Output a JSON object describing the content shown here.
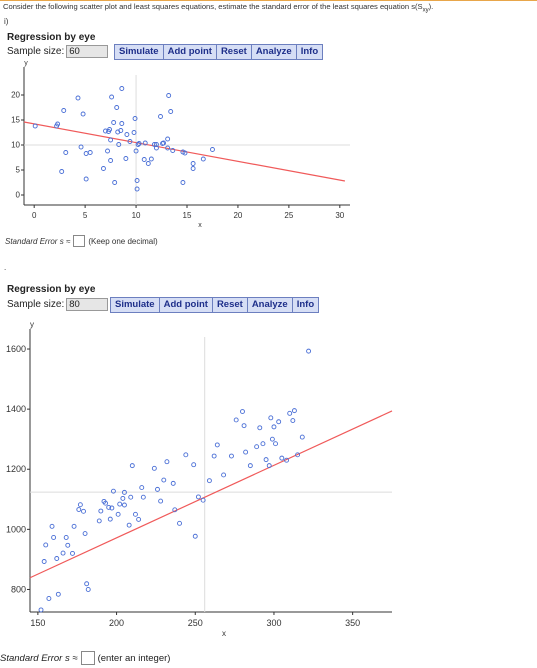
{
  "question": {
    "prompt": "Consider the following scatter plot and least squares equations, estimate the standard error of the least squares equation s(S",
    "prompt_sub": "xy",
    "prompt_end": ").",
    "part_label": "i)",
    "part2_label": "."
  },
  "toolbar": {
    "simulate_label": "Simulate",
    "add_point_label": "Add point",
    "reset_label": "Reset",
    "analyze_label": "Analyze",
    "info_label": "Info"
  },
  "colors": {
    "point": "#4a6fd6",
    "regression_line": "#f05a5a",
    "button_bg": "#d6def5",
    "button_text": "#1e2f8a"
  },
  "panel1": {
    "title": "Regression by eye",
    "sample_size_label": "Sample size:",
    "sample_size_value": "60",
    "answer_label": "Standard Error s ≈",
    "answer_hint": "(Keep one decimal)"
  },
  "panel2": {
    "title": "Regression by eye",
    "sample_size_label": "Sample size:",
    "sample_size_value": "80",
    "answer_label": "Standard Error s ≈",
    "answer_hint": "(enter an integer)"
  },
  "chart_data": [
    {
      "type": "scatter",
      "title": "",
      "xlabel": "x",
      "ylabel": "y",
      "xlim": [
        -1,
        31
      ],
      "ylim": [
        -2,
        24
      ],
      "xticks": [
        0,
        5,
        10,
        15,
        20,
        25,
        30
      ],
      "yticks": [
        0,
        5,
        10,
        15,
        20
      ],
      "mean_crosshair": [
        10,
        10
      ],
      "regression_line": {
        "x": [
          -1,
          30.5
        ],
        "y": [
          14.6,
          2.8
        ]
      },
      "points": [
        [
          0.1,
          13.8
        ],
        [
          2.2,
          13.8
        ],
        [
          2.3,
          14.2
        ],
        [
          2.7,
          4.7
        ],
        [
          2.9,
          16.9
        ],
        [
          3.1,
          8.5
        ],
        [
          4.3,
          19.4
        ],
        [
          4.6,
          9.6
        ],
        [
          4.8,
          16.2
        ],
        [
          5.1,
          3.2
        ],
        [
          5.1,
          8.3
        ],
        [
          5.5,
          8.5
        ],
        [
          6.8,
          5.3
        ],
        [
          7,
          12.8
        ],
        [
          7.2,
          8.8
        ],
        [
          7.3,
          12.7
        ],
        [
          7.4,
          13.1
        ],
        [
          7.5,
          6.9
        ],
        [
          7.5,
          11
        ],
        [
          7.6,
          19.6
        ],
        [
          7.8,
          14.5
        ],
        [
          7.9,
          2.5
        ],
        [
          8.1,
          17.5
        ],
        [
          8.2,
          12.6
        ],
        [
          8.3,
          10.1
        ],
        [
          8.5,
          12.9
        ],
        [
          8.6,
          14.3
        ],
        [
          8.6,
          21.3
        ],
        [
          9,
          7.3
        ],
        [
          9.1,
          12.1
        ],
        [
          9.4,
          10.7
        ],
        [
          9.8,
          12.5
        ],
        [
          9.9,
          15.3
        ],
        [
          10,
          8.8
        ],
        [
          10.1,
          1.2
        ],
        [
          10.1,
          2.9
        ],
        [
          10.2,
          10.1
        ],
        [
          10.3,
          10.3
        ],
        [
          10.8,
          7.1
        ],
        [
          10.9,
          10.4
        ],
        [
          11.2,
          6.3
        ],
        [
          11.5,
          7.2
        ],
        [
          11.8,
          10.1
        ],
        [
          12,
          9.4
        ],
        [
          12,
          10.1
        ],
        [
          12.4,
          15.7
        ],
        [
          12.6,
          10.3
        ],
        [
          12.7,
          10.4
        ],
        [
          13.1,
          11.2
        ],
        [
          13.1,
          9.4
        ],
        [
          13.2,
          19.9
        ],
        [
          13.4,
          16.7
        ],
        [
          13.6,
          8.9
        ],
        [
          14.6,
          8.6
        ],
        [
          14.6,
          2.5
        ],
        [
          14.8,
          8.4
        ],
        [
          15.6,
          6.3
        ],
        [
          15.6,
          5.3
        ],
        [
          16.6,
          7.2
        ],
        [
          17.5,
          9.1
        ]
      ]
    },
    {
      "type": "scatter",
      "title": "",
      "xlabel": "x",
      "ylabel": "y",
      "xlim": [
        145,
        375
      ],
      "ylim": [
        725,
        1640
      ],
      "xticks": [
        150,
        200,
        250,
        300,
        350
      ],
      "yticks": [
        800,
        1000,
        1200,
        1400,
        1600
      ],
      "mean_crosshair": [
        256,
        1124
      ],
      "regression_line": {
        "x": [
          145,
          375
        ],
        "y": [
          839,
          1394
        ]
      },
      "points": [
        [
          152,
          732
        ],
        [
          154,
          893
        ],
        [
          155,
          948
        ],
        [
          157,
          770
        ],
        [
          159,
          1010
        ],
        [
          160,
          973
        ],
        [
          162,
          903
        ],
        [
          163,
          784
        ],
        [
          166,
          921
        ],
        [
          168,
          973
        ],
        [
          169,
          947
        ],
        [
          172,
          920
        ],
        [
          173,
          1010
        ],
        [
          176,
          1066
        ],
        [
          177,
          1082
        ],
        [
          179,
          1060
        ],
        [
          180,
          986
        ],
        [
          181,
          819
        ],
        [
          182,
          800
        ],
        [
          189,
          1028
        ],
        [
          190,
          1061
        ],
        [
          192,
          1093
        ],
        [
          193,
          1087
        ],
        [
          195,
          1073
        ],
        [
          196,
          1034
        ],
        [
          197,
          1071
        ],
        [
          198,
          1127
        ],
        [
          201,
          1050
        ],
        [
          202,
          1084
        ],
        [
          204,
          1103
        ],
        [
          205,
          1123
        ],
        [
          205,
          1081
        ],
        [
          208,
          1014
        ],
        [
          209,
          1107
        ],
        [
          210,
          1212
        ],
        [
          212,
          1050
        ],
        [
          214,
          1033
        ],
        [
          216,
          1139
        ],
        [
          217,
          1107
        ],
        [
          224,
          1203
        ],
        [
          226,
          1133
        ],
        [
          228,
          1094
        ],
        [
          230,
          1164
        ],
        [
          232,
          1225
        ],
        [
          236,
          1153
        ],
        [
          237,
          1065
        ],
        [
          240,
          1020
        ],
        [
          244,
          1248
        ],
        [
          249,
          1215
        ],
        [
          250,
          977
        ],
        [
          252,
          1108
        ],
        [
          255,
          1097
        ],
        [
          259,
          1162
        ],
        [
          262,
          1244
        ],
        [
          264,
          1281
        ],
        [
          268,
          1181
        ],
        [
          273,
          1244
        ],
        [
          276,
          1364
        ],
        [
          280,
          1392
        ],
        [
          281,
          1345
        ],
        [
          282,
          1257
        ],
        [
          285,
          1212
        ],
        [
          289,
          1275
        ],
        [
          291,
          1338
        ],
        [
          293,
          1285
        ],
        [
          295,
          1232
        ],
        [
          297,
          1212
        ],
        [
          298,
          1371
        ],
        [
          299,
          1300
        ],
        [
          300,
          1341
        ],
        [
          301,
          1285
        ],
        [
          303,
          1358
        ],
        [
          305,
          1237
        ],
        [
          308,
          1230
        ],
        [
          310,
          1386
        ],
        [
          312,
          1362
        ],
        [
          313,
          1395
        ],
        [
          315,
          1248
        ],
        [
          318,
          1307
        ],
        [
          322,
          1593
        ]
      ]
    }
  ]
}
